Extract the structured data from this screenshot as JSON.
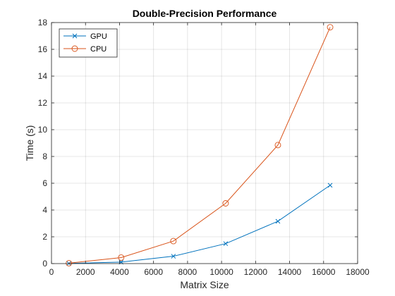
{
  "chart_data": {
    "type": "line",
    "title": "Double-Precision Performance",
    "xlabel": "Matrix Size",
    "ylabel": "Time (s)",
    "xlim": [
      0,
      18000
    ],
    "ylim": [
      0,
      18
    ],
    "xticks": [
      0,
      2000,
      4000,
      6000,
      8000,
      10000,
      12000,
      14000,
      16000,
      18000
    ],
    "yticks": [
      0,
      2,
      4,
      6,
      8,
      10,
      12,
      14,
      16,
      18
    ],
    "grid": true,
    "legend_position": "top-left",
    "series": [
      {
        "name": "GPU",
        "color": "#0072BD",
        "marker": "x",
        "x": [
          1024,
          4096,
          7168,
          10240,
          13312,
          16384
        ],
        "y": [
          0.01,
          0.11,
          0.55,
          1.49,
          3.16,
          5.85
        ]
      },
      {
        "name": "CPU",
        "color": "#D95319",
        "marker": "circle",
        "x": [
          1024,
          4096,
          7168,
          10240,
          13312,
          16384
        ],
        "y": [
          0.03,
          0.45,
          1.68,
          4.5,
          8.85,
          17.65
        ]
      }
    ]
  }
}
